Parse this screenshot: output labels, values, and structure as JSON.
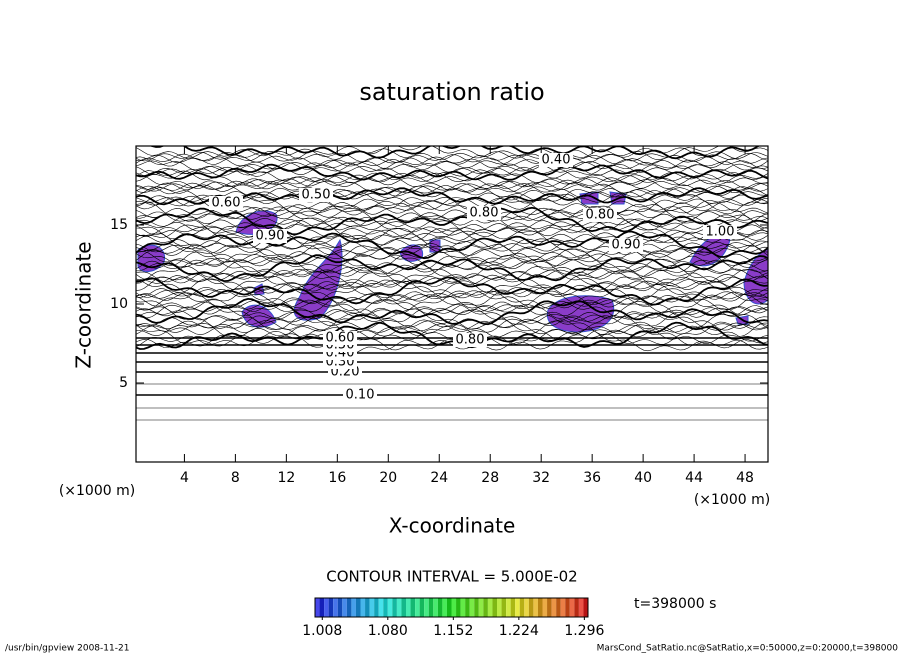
{
  "chart_data": {
    "type": "contour",
    "title": "saturation ratio",
    "xlabel": "X-coordinate",
    "ylabel": "Z-coordinate",
    "x_unit": "(×1000 m)",
    "x_unit_right": "(×1000 m)",
    "xlim": [
      0.2,
      49.8
    ],
    "ylim": [
      0,
      20
    ],
    "xticks": [
      4,
      8,
      12,
      16,
      20,
      24,
      28,
      32,
      36,
      40,
      44,
      48
    ],
    "yticks": [
      5,
      10,
      15
    ],
    "contour_labels": [
      {
        "value": 0.1,
        "label": "0.10"
      },
      {
        "value": 0.2,
        "label": "0.20"
      },
      {
        "value": 0.3,
        "label": "0.30"
      },
      {
        "value": 0.4,
        "label": "0.40"
      },
      {
        "value": 0.5,
        "label": "0.50"
      },
      {
        "value": 0.6,
        "label": "0.60"
      },
      {
        "value": 0.4,
        "label": "0.40"
      },
      {
        "value": 0.5,
        "label": "0.50"
      },
      {
        "value": 0.6,
        "label": "0.60"
      },
      {
        "value": 0.8,
        "label": "0.80"
      },
      {
        "value": 0.9,
        "label": "0.90"
      },
      {
        "value": 0.8,
        "label": "0.80"
      },
      {
        "value": 0.9,
        "label": "0.90"
      },
      {
        "value": 0.8,
        "label": "0.80"
      },
      {
        "value": 1.0,
        "label": "1.00"
      }
    ],
    "contour_interval": "CONTOUR INTERVAL = 5.000E-02",
    "time_label": "t=398000 s",
    "colorbar": {
      "clim": [
        1.0,
        1.3
      ],
      "ticks": [
        1.008,
        {
          "value": 1.08,
          "label": "1.080"
        },
        1.152,
        1.224,
        1.296
      ]
    },
    "footer_left": "/usr/bin/gpview   2008-11-21",
    "footer_right": "MarsCond_SatRatio.nc@SatRatio,x=0:50000,z=0:20000,t=398000"
  }
}
